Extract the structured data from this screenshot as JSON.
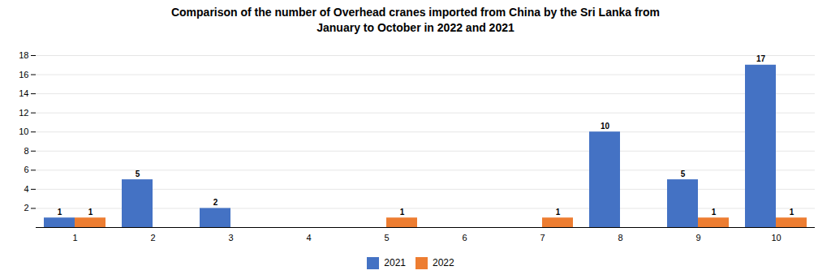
{
  "chart_data": {
    "type": "bar",
    "title": "Comparison of the number of Overhead cranes imported from China by the Sri Lanka from\nJanuary to October in 2022 and 2021",
    "categories": [
      "1",
      "2",
      "3",
      "4",
      "5",
      "6",
      "7",
      "8",
      "9",
      "10"
    ],
    "series": [
      {
        "name": "2021",
        "color": "#4472C4",
        "values": [
          1,
          5,
          2,
          0,
          0,
          0,
          0,
          10,
          5,
          17
        ],
        "value_labels": [
          "1",
          "5",
          "2",
          null,
          null,
          null,
          null,
          "10",
          "5",
          "17"
        ]
      },
      {
        "name": "2022",
        "color": "#ED7D31",
        "values": [
          1,
          0,
          0,
          0,
          1,
          0,
          1,
          0,
          1,
          1
        ],
        "value_labels": [
          "1",
          null,
          null,
          null,
          "1",
          null,
          "1",
          null,
          "1",
          "1"
        ]
      }
    ],
    "ylim": [
      0,
      18
    ],
    "yticks": [
      2,
      4,
      6,
      8,
      10,
      12,
      14,
      16,
      18
    ],
    "grid": true,
    "legend": "bottom",
    "data_labels": true
  }
}
